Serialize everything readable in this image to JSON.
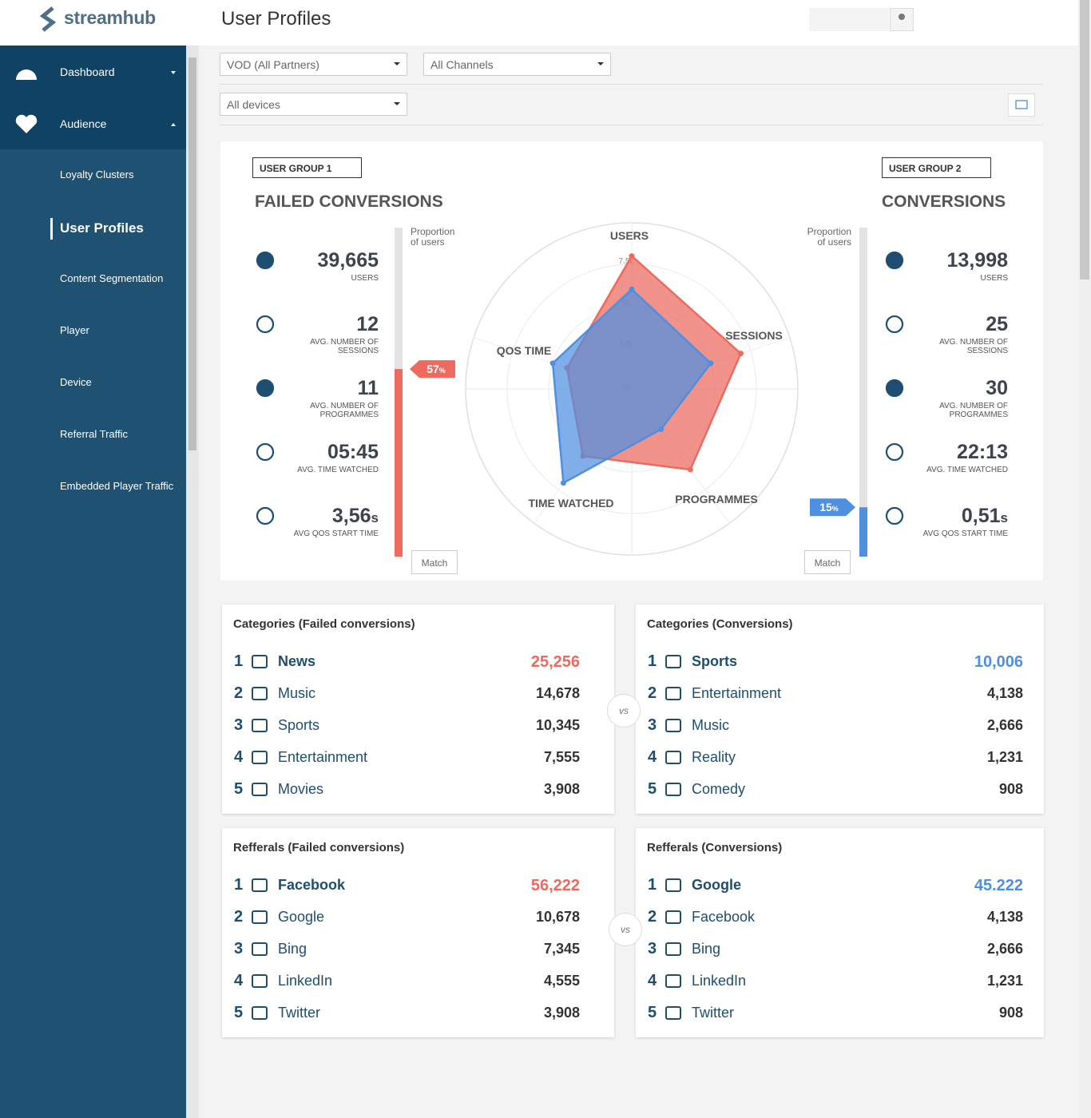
{
  "brand": "streamhub",
  "header": {
    "title": "User Profiles"
  },
  "nav": {
    "items": [
      "Dashboard",
      "Audience"
    ],
    "subitems": [
      "Loyalty Clusters",
      "User Profiles",
      "Content Segmentation",
      "Player",
      "Device",
      "Referral Traffic",
      "Embedded Player Traffic"
    ]
  },
  "filters": [
    "VOD (All Partners)",
    "All Channels",
    "All devices"
  ],
  "comparison": {
    "proportion_label": "Proportion of users",
    "match": "Match",
    "groups": [
      {
        "selector": "USER GROUP 1",
        "title": "FAILED CONVERSIONS",
        "color": "#ec6a5e",
        "proportion": 57,
        "proportion_unit": "%",
        "stats": [
          {
            "value": "39,665",
            "label": "USERS"
          },
          {
            "value": 12,
            "label": "AVG. NUMBER OF SESSIONS"
          },
          {
            "value": 11,
            "label": "AVG. NUMBER OF PROGRAMMES"
          },
          {
            "value": "05:45",
            "label": "AVG. TIME WATCHED"
          },
          {
            "value": "3,56",
            "unit": "s",
            "label": "AVG QOS START TIME"
          }
        ]
      },
      {
        "selector": "USER GROUP 2",
        "title": "CONVERSIONS",
        "color": "#4f8fe0",
        "proportion": 15,
        "proportion_unit": "%",
        "stats": [
          {
            "value": "13,998",
            "label": "USERS"
          },
          {
            "value": 25,
            "label": "AVG. NUMBER OF SESSIONS"
          },
          {
            "value": 30,
            "label": "AVG. NUMBER OF PROGRAMMES"
          },
          {
            "value": "22:13",
            "label": "AVG. TIME WATCHED"
          },
          {
            "value": "0,51",
            "unit": "s",
            "label": "AVG QOS START TIME"
          }
        ]
      }
    ]
  },
  "radar": {
    "type": "radar",
    "axes": [
      "USERS",
      "SESSIONS",
      "PROGRAMMES",
      "TIME WATCHED",
      "QOS TIME"
    ],
    "rlim": [
      0,
      10000
    ],
    "rticks": [
      0,
      {
        "value": 2500,
        "label": "2.5k"
      },
      {
        "value": 5000,
        "label": "5k"
      },
      {
        "value": 7500,
        "label": "7.5k"
      }
    ],
    "series": [
      {
        "color": "#ec6a5e",
        "values": [
          8000,
          6900,
          6000,
          5000,
          4100
        ]
      },
      {
        "color": "#4f8fe0",
        "values": [
          6000,
          5000,
          3000,
          7000,
          5000
        ]
      }
    ]
  },
  "vs": "vs",
  "tables": [
    {
      "title": "Categories (Failed conversions)",
      "rows": [
        {
          "rank": 1,
          "name": "News",
          "value": "25,256"
        },
        {
          "rank": 2,
          "name": "Music",
          "value": "14,678"
        },
        {
          "rank": 3,
          "name": "Sports",
          "value": "10,345"
        },
        {
          "rank": 4,
          "name": "Entertainment",
          "value": "7,555"
        },
        {
          "rank": 5,
          "name": "Movies",
          "value": "3,908"
        }
      ]
    },
    {
      "title": "Categories (Conversions)",
      "rows": [
        {
          "rank": 1,
          "name": "Sports",
          "value": "10,006"
        },
        {
          "rank": 2,
          "name": "Entertainment",
          "value": "4,138"
        },
        {
          "rank": 3,
          "name": "Music",
          "value": "2,666"
        },
        {
          "rank": 4,
          "name": "Reality",
          "value": "1,231"
        },
        {
          "rank": 5,
          "name": "Comedy",
          "value": "908"
        }
      ]
    },
    {
      "title": "Refferals (Failed conversions)",
      "rows": [
        {
          "rank": 1,
          "name": "Facebook",
          "value": "56,222"
        },
        {
          "rank": 2,
          "name": "Google",
          "value": "10,678"
        },
        {
          "rank": 3,
          "name": "Bing",
          "value": "7,345"
        },
        {
          "rank": 4,
          "name": "LinkedIn",
          "value": "4,555"
        },
        {
          "rank": 5,
          "name": "Twitter",
          "value": "3,908"
        }
      ]
    },
    {
      "title": "Refferals (Conversions)",
      "rows": [
        {
          "rank": 1,
          "name": "Google",
          "value": "45.222"
        },
        {
          "rank": 2,
          "name": "Facebook",
          "value": "4,138"
        },
        {
          "rank": 3,
          "name": "Bing",
          "value": "2,666"
        },
        {
          "rank": 4,
          "name": "LinkedIn",
          "value": "1,231"
        },
        {
          "rank": 5,
          "name": "Twitter",
          "value": "908"
        }
      ]
    }
  ]
}
